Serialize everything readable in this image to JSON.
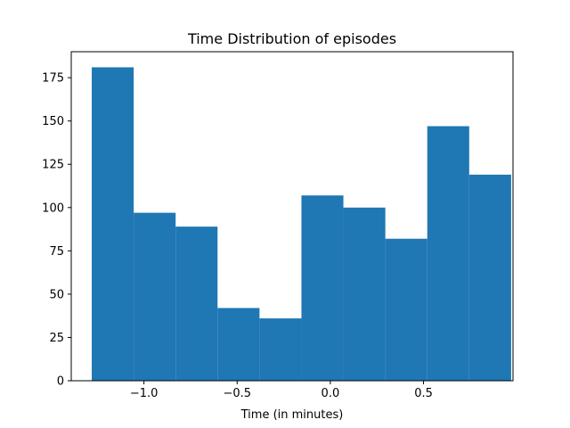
{
  "chart_data": {
    "type": "histogram",
    "title": "Time Distribution of episodes",
    "xlabel": "Time (in minutes)",
    "ylabel": "",
    "bin_edges": [
      -1.28,
      -1.055,
      -0.83,
      -0.605,
      -0.38,
      -0.155,
      0.07,
      0.295,
      0.52,
      0.745,
      0.97
    ],
    "values": [
      181,
      97,
      89,
      42,
      36,
      107,
      100,
      82,
      147,
      119
    ],
    "xlim": [
      -1.39,
      0.98
    ],
    "ylim": [
      0,
      190
    ],
    "xticks": [
      {
        "value": -1.0,
        "label": "−1.0"
      },
      {
        "value": -0.5,
        "label": "−0.5"
      },
      {
        "value": 0.0,
        "label": "0.0"
      },
      {
        "value": 0.5,
        "label": "0.5"
      }
    ],
    "yticks": [
      {
        "value": 0,
        "label": "0"
      },
      {
        "value": 25,
        "label": "25"
      },
      {
        "value": 50,
        "label": "50"
      },
      {
        "value": 75,
        "label": "75"
      },
      {
        "value": 100,
        "label": "100"
      },
      {
        "value": 125,
        "label": "125"
      },
      {
        "value": 150,
        "label": "150"
      },
      {
        "value": 175,
        "label": "175"
      }
    ],
    "bar_color": "#1f77b4",
    "grid": false,
    "legend": "none"
  }
}
